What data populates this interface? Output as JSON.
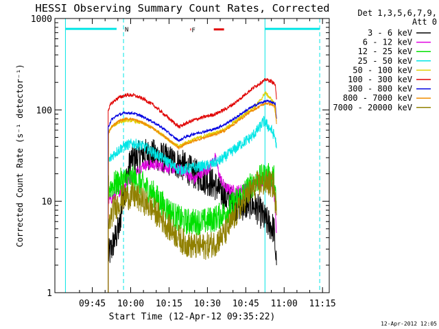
{
  "chart_data": {
    "type": "line",
    "title": "HESSI Observing Summary Count Rates, Corrected",
    "xlabel": "Start Time (12-Apr-12 09:35:22)",
    "ylabel": "Corrected Count Rate (s⁻¹ detector⁻¹)",
    "ylog": true,
    "ylim": [
      1,
      1000
    ],
    "xlim_minutes": [
      -4.633,
      102.633
    ],
    "xticks": [
      {
        "m": 10,
        "label": "09:45"
      },
      {
        "m": 25,
        "label": "10:00"
      },
      {
        "m": 40,
        "label": "10:15"
      },
      {
        "m": 55,
        "label": "10:30"
      },
      {
        "m": 70,
        "label": "10:45"
      },
      {
        "m": 85,
        "label": "11:00"
      },
      {
        "m": 100,
        "label": "11:15"
      }
    ],
    "yticks": [
      {
        "v": 1,
        "label": "1"
      },
      {
        "v": 10,
        "label": "10"
      },
      {
        "v": 100,
        "label": "100"
      },
      {
        "v": 1000,
        "label": "1000"
      }
    ],
    "legend_header": [
      "Det 1,3,5,6,7,9,",
      "Att 0"
    ],
    "legend_position": "right",
    "stamp": "12-Apr-2012 12:05",
    "vlines": [
      {
        "m": -0.5,
        "style": "solid",
        "color": "#00e5e5"
      },
      {
        "m": 22.2,
        "style": "dashed",
        "color": "#00e5e5"
      },
      {
        "m": 77.5,
        "style": "solid",
        "color": "#00e5e5"
      },
      {
        "m": 98.9,
        "style": "dashed",
        "color": "#00e5e5"
      }
    ],
    "bars": [
      {
        "label": "",
        "x": [
          -0.5,
          19.5
        ],
        "y": 770,
        "color": "#00e5e5"
      },
      {
        "label": "N",
        "x": [
          22.2,
          22.2
        ],
        "y": 770,
        "color": "#00e5e5"
      },
      {
        "label": "",
        "x": [
          77.5,
          98.9
        ],
        "y": 770,
        "color": "#00e5e5"
      },
      {
        "label": "F",
        "x": [
          48.3,
          48.6
        ],
        "y": 760,
        "color": "#e00000"
      },
      {
        "label": "",
        "x": [
          57.5,
          61.5
        ],
        "y": 760,
        "color": "#e00000"
      }
    ],
    "series": [
      {
        "name": "3 - 6 keV",
        "color": "#000000",
        "noise": 0.35,
        "t": [
          16.2,
          17.5,
          19,
          20.5,
          22.2,
          25,
          30,
          35,
          40,
          45,
          50,
          55,
          58,
          62,
          66,
          70,
          72,
          75,
          78,
          81,
          82
        ],
        "v": [
          2.5,
          3,
          4,
          5,
          12,
          28,
          33,
          32,
          28,
          25,
          20,
          17,
          15,
          11,
          9,
          9,
          9.5,
          8,
          6,
          5,
          2
        ]
      },
      {
        "name": "6 - 12 keV",
        "color": "#e000e0",
        "noise": 0.12,
        "t": [
          16.2,
          18,
          22,
          25,
          30,
          35,
          40,
          45,
          48,
          50,
          52,
          55,
          58,
          60,
          62,
          66,
          70,
          74,
          78,
          81,
          82
        ],
        "v": [
          10,
          11,
          14,
          18,
          25,
          25,
          23,
          22,
          19,
          17,
          20,
          22,
          30,
          18,
          14,
          13,
          14,
          16,
          17,
          13,
          4.5
        ]
      },
      {
        "name": "12 - 25 keV",
        "color": "#00e000",
        "noise": 0.3,
        "t": [
          16.2,
          18,
          22,
          26,
          30,
          34,
          38,
          42,
          46,
          50,
          54,
          58,
          62,
          66,
          70,
          74,
          78,
          81,
          82
        ],
        "v": [
          14,
          15,
          17,
          17.5,
          15,
          12,
          9,
          7,
          6,
          6,
          6,
          6.5,
          7.5,
          10,
          13,
          17,
          19,
          18,
          8
        ]
      },
      {
        "name": "25 - 50 keV",
        "color": "#00e5e5",
        "noise": 0.12,
        "t": [
          16.2,
          18,
          22,
          26,
          30,
          34,
          38,
          42,
          44,
          48,
          52,
          56,
          60,
          64,
          68,
          72,
          75,
          77,
          78,
          80,
          81.5,
          82
        ],
        "v": [
          27,
          32,
          40,
          43,
          40,
          34,
          29,
          24,
          22,
          23,
          24,
          25,
          28,
          34,
          42,
          50,
          62,
          75,
          70,
          60,
          50,
          38
        ]
      },
      {
        "name": "50 - 100 keV",
        "color": "#e0d000",
        "noise": 0.04,
        "t": [
          16.2,
          17.5,
          20,
          23,
          26,
          30,
          34,
          38,
          42,
          44,
          46,
          50,
          54,
          58,
          62,
          66,
          70,
          73,
          76,
          77.5,
          79,
          81,
          82
        ],
        "v": [
          55,
          65,
          72,
          77,
          76,
          71,
          62,
          52,
          42,
          40,
          43,
          48,
          52,
          56,
          62,
          75,
          92,
          105,
          130,
          155,
          140,
          120,
          75
        ]
      },
      {
        "name": "100 - 300 keV",
        "color": "#e00000",
        "noise": 0.04,
        "t": [
          16.2,
          17.5,
          20,
          23,
          26,
          30,
          34,
          38,
          42,
          44,
          46,
          50,
          54,
          58,
          62,
          66,
          70,
          73,
          76,
          78,
          80,
          81.5,
          82
        ],
        "v": [
          100,
          118,
          135,
          145,
          145,
          132,
          112,
          90,
          72,
          65,
          70,
          78,
          84,
          90,
          102,
          120,
          150,
          175,
          200,
          215,
          205,
          190,
          130
        ]
      },
      {
        "name": "300 - 800 keV",
        "color": "#0000e0",
        "noise": 0.03,
        "t": [
          16.2,
          17.5,
          20,
          23,
          26,
          30,
          34,
          38,
          42,
          44,
          46,
          50,
          54,
          58,
          62,
          66,
          70,
          73,
          76,
          78,
          80,
          81.5,
          82
        ],
        "v": [
          65,
          78,
          88,
          93,
          92,
          84,
          73,
          62,
          50,
          46,
          50,
          55,
          58,
          62,
          70,
          82,
          98,
          110,
          120,
          125,
          122,
          118,
          80
        ]
      },
      {
        "name": "800 - 7000 keV",
        "color": "#f08c00",
        "noise": 0.03,
        "t": [
          16.2,
          16.4,
          17.5,
          20,
          23,
          26,
          30,
          34,
          38,
          42,
          44,
          46,
          50,
          54,
          58,
          62,
          66,
          70,
          73,
          76,
          78,
          80,
          81.5,
          82
        ],
        "v": [
          1,
          55,
          65,
          75,
          80,
          79,
          72,
          62,
          52,
          42,
          38,
          42,
          46,
          50,
          54,
          60,
          72,
          88,
          100,
          112,
          118,
          115,
          108,
          70
        ]
      },
      {
        "name": "7000 - 20000 keV",
        "color": "#908000",
        "noise": 0.3,
        "t": [
          16.2,
          18,
          22,
          26,
          30,
          34,
          38,
          42,
          46,
          50,
          54,
          58,
          62,
          66,
          70,
          74,
          78,
          81,
          82
        ],
        "v": [
          5,
          8,
          11,
          11.5,
          10,
          8,
          6,
          4.5,
          3.5,
          3.2,
          3.2,
          3.5,
          4.5,
          7,
          11,
          15,
          16,
          15,
          7
        ]
      }
    ]
  }
}
